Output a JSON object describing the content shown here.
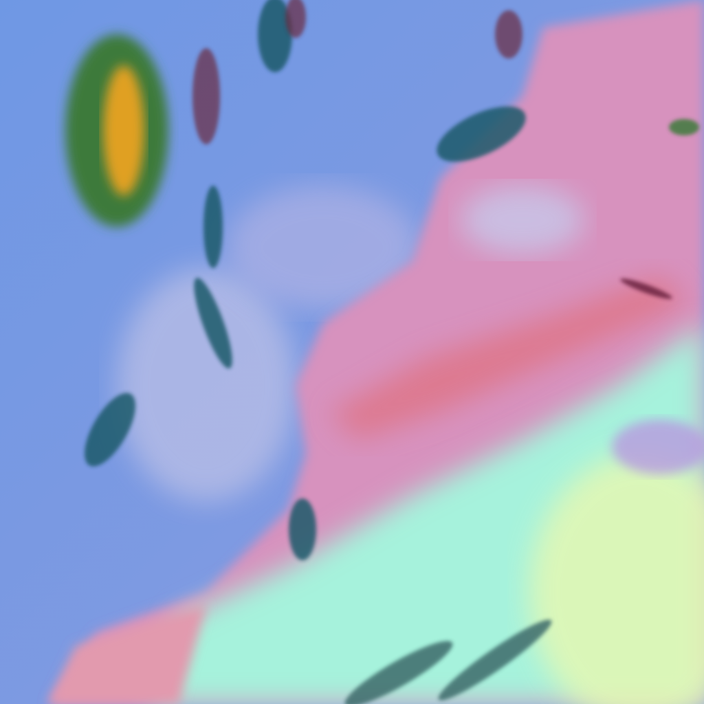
{
  "image": {
    "kind": "false-color satellite imagery",
    "colors": {
      "ocean": "#7b98e2",
      "ocean_haze": "#a9b6e6",
      "land_pink": "#d98fb8",
      "land_red": "#e0707e",
      "desert_cyan": "#a8f5d8",
      "desert_yellow": "#e8f8b0",
      "cloud_dark": "#1d5a6a",
      "cloud_green": "#3e7a3a",
      "cloud_orange": "#e0a020"
    }
  }
}
